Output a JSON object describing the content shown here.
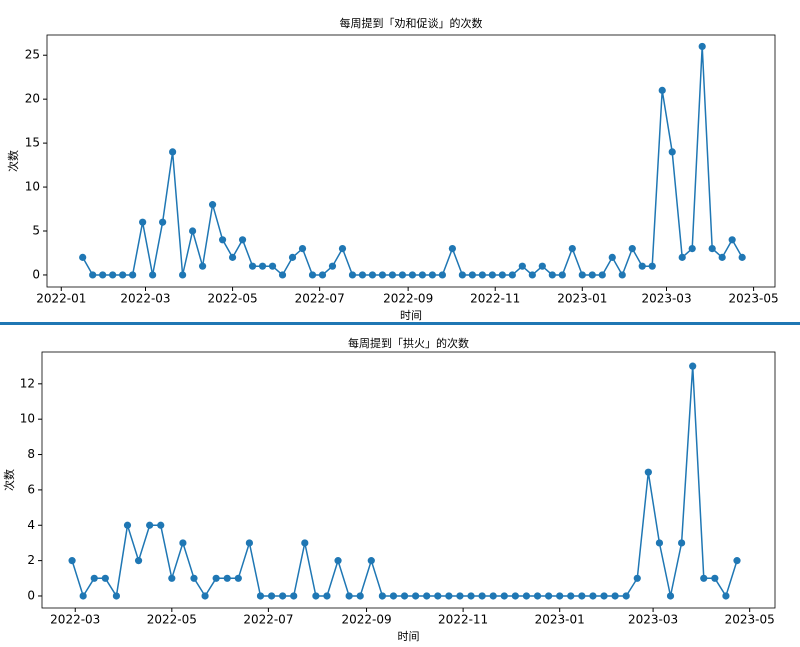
{
  "chart_data": [
    {
      "type": "line",
      "title": "每周提到「劝和促谈」的次数",
      "xlabel": "时间",
      "ylabel": "次数",
      "color": "#1f77b4",
      "x": [
        "2022-01-16",
        "2022-01-23",
        "2022-01-30",
        "2022-02-06",
        "2022-02-13",
        "2022-02-20",
        "2022-02-27",
        "2022-03-06",
        "2022-03-13",
        "2022-03-20",
        "2022-03-27",
        "2022-04-03",
        "2022-04-10",
        "2022-04-17",
        "2022-04-24",
        "2022-05-01",
        "2022-05-08",
        "2022-05-15",
        "2022-05-22",
        "2022-05-29",
        "2022-06-05",
        "2022-06-12",
        "2022-06-19",
        "2022-06-26",
        "2022-07-03",
        "2022-07-10",
        "2022-07-17",
        "2022-07-24",
        "2022-07-31",
        "2022-08-07",
        "2022-08-14",
        "2022-08-21",
        "2022-08-28",
        "2022-09-04",
        "2022-09-11",
        "2022-09-18",
        "2022-09-25",
        "2022-10-02",
        "2022-10-09",
        "2022-10-16",
        "2022-10-23",
        "2022-10-30",
        "2022-11-06",
        "2022-11-13",
        "2022-11-20",
        "2022-11-27",
        "2022-12-04",
        "2022-12-11",
        "2022-12-18",
        "2022-12-25",
        "2023-01-01",
        "2023-01-08",
        "2023-01-15",
        "2023-01-22",
        "2023-01-29",
        "2023-02-05",
        "2023-02-12",
        "2023-02-19",
        "2023-02-26",
        "2023-03-05",
        "2023-03-12",
        "2023-03-19",
        "2023-03-26",
        "2023-04-02",
        "2023-04-09",
        "2023-04-16",
        "2023-04-23"
      ],
      "values": [
        2,
        0,
        0,
        0,
        0,
        0,
        6,
        0,
        6,
        14,
        0,
        5,
        1,
        8,
        4,
        2,
        4,
        1,
        1,
        1,
        0,
        2,
        3,
        0,
        0,
        1,
        3,
        0,
        0,
        0,
        0,
        0,
        0,
        0,
        0,
        0,
        0,
        3,
        0,
        0,
        0,
        0,
        0,
        0,
        1,
        0,
        1,
        0,
        0,
        3,
        0,
        0,
        0,
        2,
        0,
        3,
        1,
        1,
        21,
        14,
        2,
        3,
        26,
        3,
        2,
        4,
        2
      ],
      "xlim": [
        "2021-12-22",
        "2023-05-16"
      ],
      "xticks": [
        "2022-01",
        "2022-03",
        "2022-05",
        "2022-07",
        "2022-09",
        "2022-11",
        "2023-01",
        "2023-03",
        "2023-05"
      ],
      "ylim": [
        -1.37,
        27.3
      ],
      "yticks": [
        0,
        5,
        10,
        15,
        20,
        25
      ]
    },
    {
      "type": "line",
      "title": "每周提到「拱火」的次数",
      "xlabel": "时间",
      "ylabel": "次数",
      "color": "#1f77b4",
      "x": [
        "2022-02-27",
        "2022-03-06",
        "2022-03-13",
        "2022-03-20",
        "2022-03-27",
        "2022-04-03",
        "2022-04-10",
        "2022-04-17",
        "2022-04-24",
        "2022-05-01",
        "2022-05-08",
        "2022-05-15",
        "2022-05-22",
        "2022-05-29",
        "2022-06-05",
        "2022-06-12",
        "2022-06-19",
        "2022-06-26",
        "2022-07-03",
        "2022-07-10",
        "2022-07-17",
        "2022-07-24",
        "2022-07-31",
        "2022-08-07",
        "2022-08-14",
        "2022-08-21",
        "2022-08-28",
        "2022-09-04",
        "2022-09-11",
        "2022-09-18",
        "2022-09-25",
        "2022-10-02",
        "2022-10-09",
        "2022-10-16",
        "2022-10-23",
        "2022-10-30",
        "2022-11-06",
        "2022-11-13",
        "2022-11-20",
        "2022-11-27",
        "2022-12-04",
        "2022-12-11",
        "2022-12-18",
        "2022-12-25",
        "2023-01-01",
        "2023-01-08",
        "2023-01-15",
        "2023-01-22",
        "2023-01-29",
        "2023-02-05",
        "2023-02-12",
        "2023-02-19",
        "2023-02-26",
        "2023-03-05",
        "2023-03-12",
        "2023-03-19",
        "2023-03-26",
        "2023-04-02",
        "2023-04-09",
        "2023-04-16",
        "2023-04-23"
      ],
      "values": [
        2,
        0,
        1,
        1,
        0,
        4,
        2,
        4,
        4,
        1,
        3,
        1,
        0,
        1,
        1,
        1,
        3,
        0,
        0,
        0,
        0,
        3,
        0,
        0,
        2,
        0,
        0,
        2,
        0,
        0,
        0,
        0,
        0,
        0,
        0,
        0,
        0,
        0,
        0,
        0,
        0,
        0,
        0,
        0,
        0,
        0,
        0,
        0,
        0,
        0,
        0,
        1,
        7,
        3,
        0,
        3,
        13,
        1,
        1,
        0,
        2
      ],
      "xlim": [
        "2022-02-08",
        "2023-05-17"
      ],
      "xticks": [
        "2022-03",
        "2022-05",
        "2022-07",
        "2022-09",
        "2022-11",
        "2023-01",
        "2023-03",
        "2023-05"
      ],
      "ylim": [
        -0.68,
        13.8
      ],
      "yticks": [
        0,
        2,
        4,
        6,
        8,
        10,
        12
      ]
    }
  ]
}
